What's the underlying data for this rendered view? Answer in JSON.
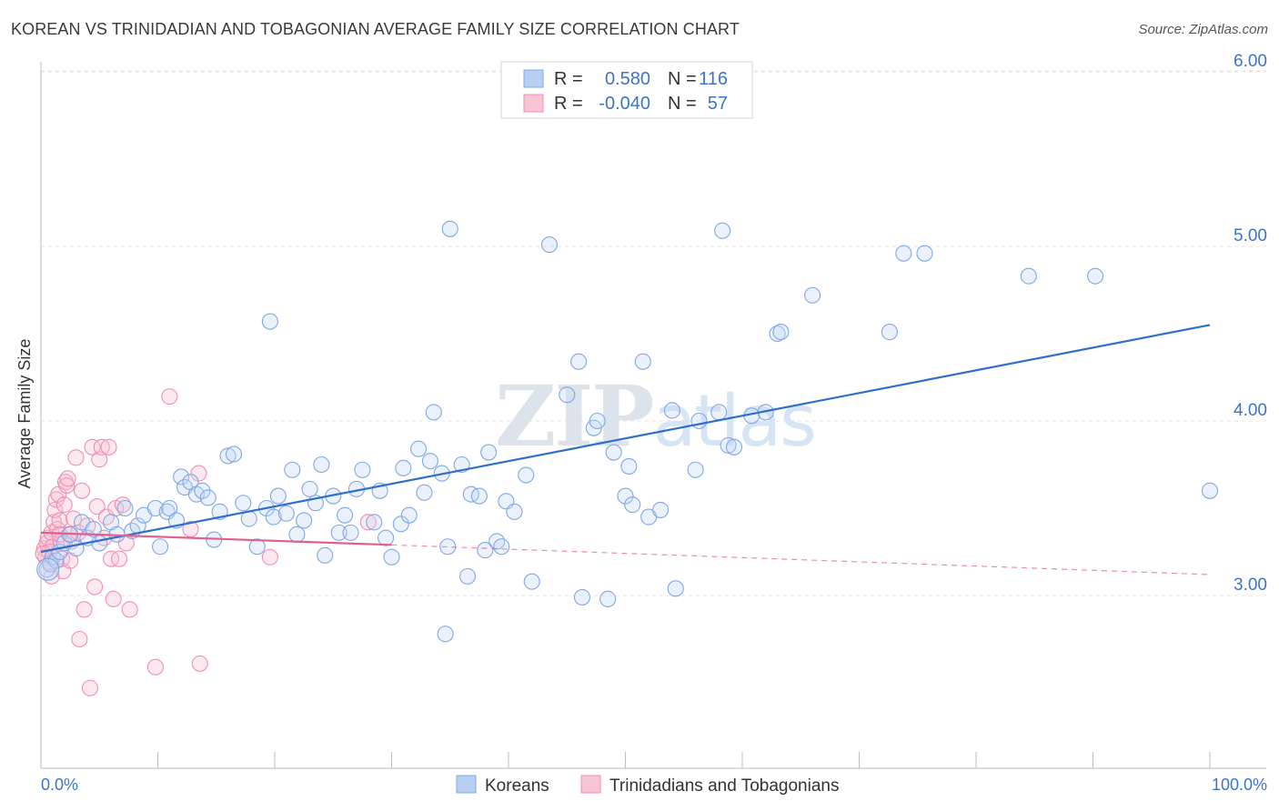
{
  "title": "KOREAN VS TRINIDADIAN AND TOBAGONIAN AVERAGE FAMILY SIZE CORRELATION CHART",
  "source": "Source: ZipAtlas.com",
  "watermark": "ZIPatlas",
  "colors": {
    "korean": "#7fa8e6",
    "korean_line": "#2f6fcc",
    "trini": "#f08fb0",
    "trini_line": "#e0608c",
    "label": "#3d74c6"
  },
  "legend": {
    "r_label": "R =",
    "n_label": "N =",
    "rows": [
      {
        "r": "0.580",
        "n": "116"
      },
      {
        "r": "-0.040",
        "n": "57"
      }
    ]
  },
  "chart_data": {
    "type": "scatter",
    "title": "KOREAN VS TRINIDADIAN AND TOBAGONIAN AVERAGE FAMILY SIZE CORRELATION CHART",
    "xlabel": "",
    "ylabel": "Average Family Size",
    "xlim": [
      0,
      100
    ],
    "ylim": [
      2.0,
      6.1
    ],
    "x_tick_labels": [
      "0.0%",
      "100.0%"
    ],
    "y_ticks": [
      3.0,
      4.0,
      5.0,
      6.0
    ],
    "y_tick_labels": [
      "3.00",
      "4.00",
      "5.00",
      "6.00"
    ],
    "grid": true,
    "legend_placement": "top-center",
    "series": [
      {
        "name": "Koreans",
        "r": 0.58,
        "n": 116,
        "trend": {
          "x": [
            0,
            100
          ],
          "y": [
            3.25,
            4.55
          ]
        },
        "points": [
          [
            0.5,
            3.15
          ],
          [
            0.8,
            3.18
          ],
          [
            1.0,
            3.22
          ],
          [
            1.3,
            3.2
          ],
          [
            1.6,
            3.25
          ],
          [
            2.0,
            3.3
          ],
          [
            2.5,
            3.35
          ],
          [
            3.0,
            3.27
          ],
          [
            3.5,
            3.42
          ],
          [
            4.0,
            3.33
          ],
          [
            4.5,
            3.38
          ],
          [
            5.0,
            3.3
          ],
          [
            6.0,
            3.42
          ],
          [
            6.5,
            3.35
          ],
          [
            7.2,
            3.5
          ],
          [
            7.8,
            3.37
          ],
          [
            8.3,
            3.4
          ],
          [
            8.8,
            3.46
          ],
          [
            9.8,
            3.5
          ],
          [
            10.2,
            3.28
          ],
          [
            10.8,
            3.48
          ],
          [
            11.0,
            3.5
          ],
          [
            11.6,
            3.43
          ],
          [
            12.0,
            3.68
          ],
          [
            12.3,
            3.62
          ],
          [
            12.8,
            3.65
          ],
          [
            13.3,
            3.58
          ],
          [
            13.8,
            3.6
          ],
          [
            14.3,
            3.56
          ],
          [
            14.8,
            3.32
          ],
          [
            15.3,
            3.48
          ],
          [
            16.0,
            3.8
          ],
          [
            16.5,
            3.81
          ],
          [
            17.3,
            3.53
          ],
          [
            17.8,
            3.44
          ],
          [
            18.5,
            3.28
          ],
          [
            19.3,
            3.5
          ],
          [
            19.6,
            4.57
          ],
          [
            19.9,
            3.45
          ],
          [
            20.3,
            3.57
          ],
          [
            21.0,
            3.47
          ],
          [
            21.5,
            3.72
          ],
          [
            21.9,
            3.35
          ],
          [
            22.5,
            3.43
          ],
          [
            23.0,
            3.61
          ],
          [
            23.5,
            3.53
          ],
          [
            24.0,
            3.75
          ],
          [
            24.3,
            3.23
          ],
          [
            25.0,
            3.57
          ],
          [
            25.5,
            3.36
          ],
          [
            26.0,
            3.46
          ],
          [
            26.5,
            3.36
          ],
          [
            27.0,
            3.61
          ],
          [
            27.5,
            3.72
          ],
          [
            28.5,
            3.42
          ],
          [
            29.0,
            3.6
          ],
          [
            29.5,
            3.33
          ],
          [
            30.0,
            3.22
          ],
          [
            30.8,
            3.41
          ],
          [
            31.0,
            3.73
          ],
          [
            31.5,
            3.46
          ],
          [
            32.3,
            3.84
          ],
          [
            32.8,
            3.59
          ],
          [
            33.3,
            3.77
          ],
          [
            33.6,
            4.05
          ],
          [
            34.3,
            3.7
          ],
          [
            34.6,
            2.78
          ],
          [
            34.8,
            3.28
          ],
          [
            35.0,
            5.1
          ],
          [
            36.0,
            3.75
          ],
          [
            36.5,
            3.11
          ],
          [
            36.8,
            3.58
          ],
          [
            37.5,
            3.57
          ],
          [
            38.0,
            3.26
          ],
          [
            38.3,
            3.82
          ],
          [
            39.0,
            3.31
          ],
          [
            39.4,
            3.28
          ],
          [
            39.8,
            3.54
          ],
          [
            40.5,
            3.48
          ],
          [
            41.5,
            3.69
          ],
          [
            42.0,
            3.08
          ],
          [
            43.5,
            5.01
          ],
          [
            45.0,
            4.15
          ],
          [
            46.0,
            4.34
          ],
          [
            46.3,
            2.99
          ],
          [
            47.3,
            3.96
          ],
          [
            47.6,
            4.0
          ],
          [
            48.5,
            2.98
          ],
          [
            49.0,
            3.82
          ],
          [
            50.0,
            3.57
          ],
          [
            50.3,
            3.74
          ],
          [
            50.6,
            3.52
          ],
          [
            51.5,
            4.34
          ],
          [
            52.0,
            3.45
          ],
          [
            53.0,
            3.49
          ],
          [
            54.0,
            4.06
          ],
          [
            54.3,
            3.04
          ],
          [
            56.0,
            3.72
          ],
          [
            56.3,
            4.0
          ],
          [
            58.0,
            4.05
          ],
          [
            58.3,
            5.09
          ],
          [
            58.8,
            3.86
          ],
          [
            59.3,
            3.85
          ],
          [
            60.8,
            4.03
          ],
          [
            62.0,
            4.05
          ],
          [
            63.0,
            4.5
          ],
          [
            63.3,
            4.51
          ],
          [
            66.0,
            4.72
          ],
          [
            72.6,
            4.51
          ],
          [
            73.8,
            4.96
          ],
          [
            75.6,
            4.96
          ],
          [
            84.5,
            4.83
          ],
          [
            90.2,
            4.83
          ],
          [
            100.0,
            3.6
          ]
        ]
      },
      {
        "name": "Trinidadians and Tobagonians",
        "r": -0.04,
        "n": 57,
        "trend": {
          "x": [
            0,
            30
          ],
          "y": [
            3.36,
            3.29
          ],
          "dashed_to": [
            100,
            3.12
          ]
        },
        "points": [
          [
            0.3,
            3.27
          ],
          [
            0.4,
            3.22
          ],
          [
            0.5,
            3.3
          ],
          [
            0.6,
            3.33
          ],
          [
            0.7,
            3.25
          ],
          [
            0.8,
            3.19
          ],
          [
            0.9,
            3.36
          ],
          [
            1.0,
            3.28
          ],
          [
            1.1,
            3.42
          ],
          [
            1.2,
            3.49
          ],
          [
            1.3,
            3.55
          ],
          [
            1.4,
            3.38
          ],
          [
            1.5,
            3.58
          ],
          [
            1.6,
            3.43
          ],
          [
            1.7,
            3.31
          ],
          [
            1.8,
            3.21
          ],
          [
            1.9,
            3.14
          ],
          [
            2.0,
            3.52
          ],
          [
            2.1,
            3.65
          ],
          [
            2.2,
            3.63
          ],
          [
            2.3,
            3.67
          ],
          [
            2.4,
            3.35
          ],
          [
            2.5,
            3.2
          ],
          [
            2.6,
            3.31
          ],
          [
            2.8,
            3.44
          ],
          [
            3.0,
            3.79
          ],
          [
            3.2,
            3.36
          ],
          [
            3.3,
            2.75
          ],
          [
            3.5,
            3.6
          ],
          [
            3.7,
            2.92
          ],
          [
            4.0,
            3.4
          ],
          [
            4.2,
            2.47
          ],
          [
            4.4,
            3.85
          ],
          [
            4.6,
            3.05
          ],
          [
            4.8,
            3.51
          ],
          [
            5.0,
            3.78
          ],
          [
            5.2,
            3.85
          ],
          [
            5.4,
            3.33
          ],
          [
            5.6,
            3.45
          ],
          [
            5.8,
            3.85
          ],
          [
            6.0,
            3.21
          ],
          [
            6.2,
            2.98
          ],
          [
            6.4,
            3.5
          ],
          [
            6.7,
            3.21
          ],
          [
            7.0,
            3.52
          ],
          [
            7.3,
            3.3
          ],
          [
            7.6,
            2.92
          ],
          [
            9.8,
            2.59
          ],
          [
            11.0,
            4.14
          ],
          [
            12.8,
            3.38
          ],
          [
            13.5,
            3.7
          ],
          [
            13.6,
            2.61
          ],
          [
            19.6,
            3.22
          ],
          [
            28.0,
            3.42
          ],
          [
            0.2,
            3.24
          ],
          [
            0.9,
            3.11
          ],
          [
            1.6,
            3.35
          ]
        ]
      }
    ]
  }
}
